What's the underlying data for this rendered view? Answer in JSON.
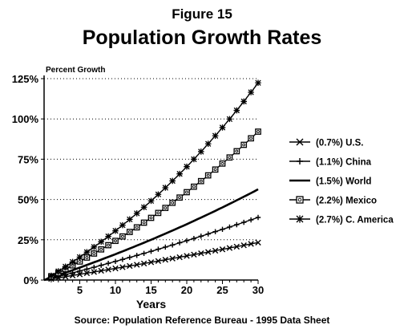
{
  "figure_label": "Figure 15",
  "chart_data": {
    "type": "line",
    "title": "Population Growth Rates",
    "ylabel": "Percent Growth",
    "xlabel": "Years",
    "source": "Source: Population Reference Bureau - 1995 Data Sheet",
    "xlim": [
      0,
      30
    ],
    "ylim": [
      0,
      125
    ],
    "x_ticks": [
      5,
      10,
      15,
      20,
      25,
      30
    ],
    "y_ticks": [
      0,
      25,
      50,
      75,
      100,
      125
    ],
    "y_tick_labels": [
      "0%",
      "25%",
      "50%",
      "75%",
      "100%",
      "125%"
    ],
    "grid": "horizontal dotted",
    "legend_position": "right",
    "series": [
      {
        "name": "(0.7%) U.S.",
        "marker": "x-cross",
        "rate": 0.7,
        "x": [
          0,
          5,
          10,
          15,
          20,
          25,
          30
        ],
        "values": [
          0,
          3.5,
          7.2,
          11.0,
          15.0,
          19.1,
          23.3
        ]
      },
      {
        "name": "(1.1%) China",
        "marker": "plus",
        "rate": 1.1,
        "x": [
          0,
          5,
          10,
          15,
          20,
          25,
          30
        ],
        "values": [
          0,
          5.6,
          11.6,
          17.8,
          24.5,
          31.4,
          38.8
        ]
      },
      {
        "name": "(1.5%) World",
        "marker": "none",
        "rate": 1.5,
        "x": [
          0,
          5,
          10,
          15,
          20,
          25,
          30
        ],
        "values": [
          0,
          7.7,
          16.1,
          25.0,
          34.7,
          45.1,
          56.3
        ]
      },
      {
        "name": "(2.2%) Mexico",
        "marker": "square-ring",
        "rate": 2.2,
        "x": [
          0,
          5,
          10,
          15,
          20,
          25,
          30
        ],
        "values": [
          0,
          11.5,
          24.3,
          38.6,
          54.5,
          72.3,
          92.1
        ]
      },
      {
        "name": "(2.7%) C. America",
        "marker": "asterisk",
        "rate": 2.7,
        "x": [
          0,
          5,
          10,
          15,
          20,
          25,
          30
        ],
        "values": [
          0,
          14.3,
          30.6,
          49.2,
          70.5,
          94.8,
          122.5
        ]
      }
    ]
  }
}
